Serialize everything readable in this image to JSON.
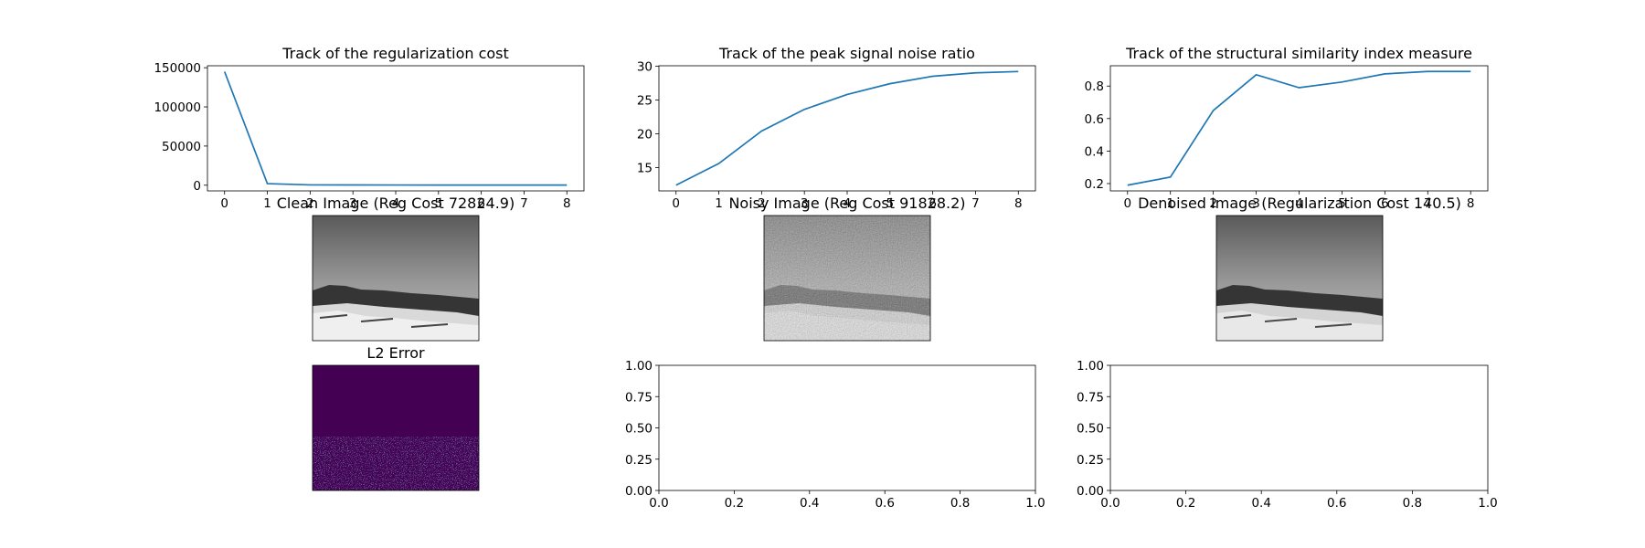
{
  "chart_data": [
    {
      "type": "line",
      "title": "Track of the regularization cost",
      "x": [
        0,
        1,
        2,
        3,
        4,
        5,
        6,
        7,
        8
      ],
      "series": [
        {
          "values": [
            145000,
            2000,
            400,
            300,
            250,
            220,
            200,
            180,
            170
          ]
        }
      ],
      "xlim": [
        -0.4,
        8.4
      ],
      "ylim": [
        -7250,
        152500
      ],
      "xticks": [
        0,
        1,
        2,
        3,
        4,
        5,
        6,
        7,
        8
      ],
      "yticks": [
        0,
        50000,
        100000,
        150000
      ],
      "color": "#1f77b4"
    },
    {
      "type": "line",
      "title": "Track of the peak signal noise ratio",
      "x": [
        0,
        1,
        2,
        3,
        4,
        5,
        6,
        7,
        8
      ],
      "series": [
        {
          "values": [
            12.4,
            15.6,
            20.4,
            23.6,
            25.8,
            27.4,
            28.5,
            29.0,
            29.2
          ]
        }
      ],
      "xlim": [
        -0.4,
        8.4
      ],
      "ylim": [
        11.55,
        30.05
      ],
      "xticks": [
        0,
        1,
        2,
        3,
        4,
        5,
        6,
        7,
        8
      ],
      "yticks": [
        15,
        20,
        25,
        30
      ],
      "color": "#1f77b4"
    },
    {
      "type": "line",
      "title": "Track of the structural similarity index measure",
      "x": [
        0,
        1,
        2,
        3,
        4,
        5,
        6,
        7,
        8
      ],
      "series": [
        {
          "values": [
            0.19,
            0.24,
            0.65,
            0.87,
            0.79,
            0.825,
            0.875,
            0.89,
            0.89
          ]
        }
      ],
      "xlim": [
        -0.4,
        8.4
      ],
      "ylim": [
        0.155,
        0.925
      ],
      "xticks": [
        0,
        1,
        2,
        3,
        4,
        5,
        6,
        7,
        8
      ],
      "yticks": [
        0.2,
        0.4,
        0.6,
        0.8
      ],
      "color": "#1f77b4"
    },
    {
      "type": "line",
      "title": "",
      "series": [],
      "xlim": [
        0,
        1
      ],
      "ylim": [
        0,
        1
      ],
      "xticks": [
        0.0,
        0.2,
        0.4,
        0.6,
        0.8,
        1.0
      ],
      "yticks": [
        0.0,
        0.25,
        0.5,
        0.75,
        1.0
      ]
    },
    {
      "type": "line",
      "title": "",
      "series": [],
      "xlim": [
        0,
        1
      ],
      "ylim": [
        0,
        1
      ],
      "xticks": [
        0.0,
        0.2,
        0.4,
        0.6,
        0.8,
        1.0
      ],
      "yticks": [
        0.0,
        0.25,
        0.5,
        0.75,
        1.0
      ]
    }
  ],
  "images": {
    "clean_title": "Clean Image (Reg Cost 72824.9)",
    "noisy_title": "Noisy Image (Reg Cost 91828.2)",
    "denoised_title": "Denoised Image (Regularization Cost 140.5)",
    "l2_title": "L2 Error"
  }
}
